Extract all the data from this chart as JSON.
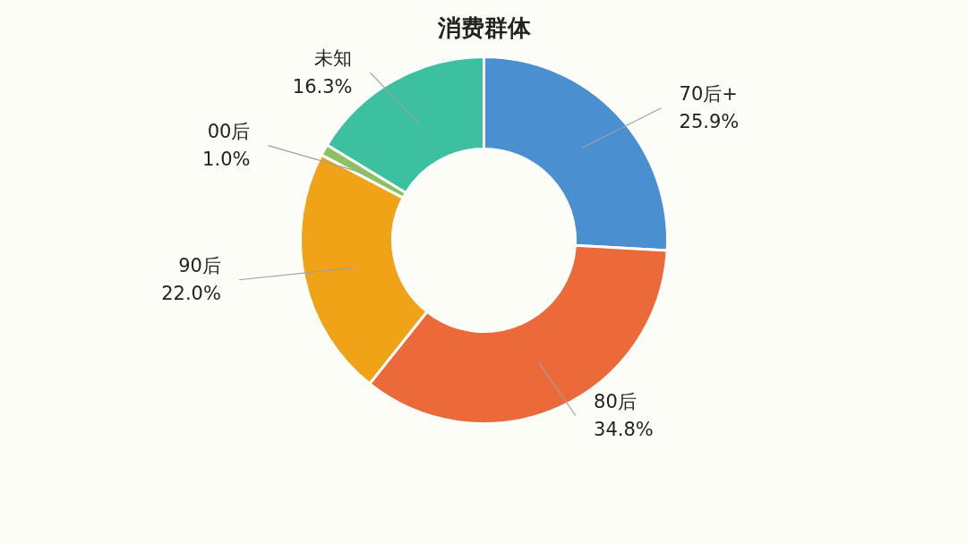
{
  "chart_data": {
    "type": "donut",
    "title": "消费群体",
    "categories": [
      "70后+",
      "80后",
      "90后",
      "00后",
      "未知"
    ],
    "values": [
      25.9,
      34.8,
      22.0,
      1.0,
      16.3
    ],
    "value_labels": [
      "25.9%",
      "34.8%",
      "22.0%",
      "1.0%",
      "16.3%"
    ],
    "colors": [
      "#4a8fd0",
      "#ec6a3a",
      "#f0a316",
      "#8cc060",
      "#3cc0a0"
    ]
  }
}
